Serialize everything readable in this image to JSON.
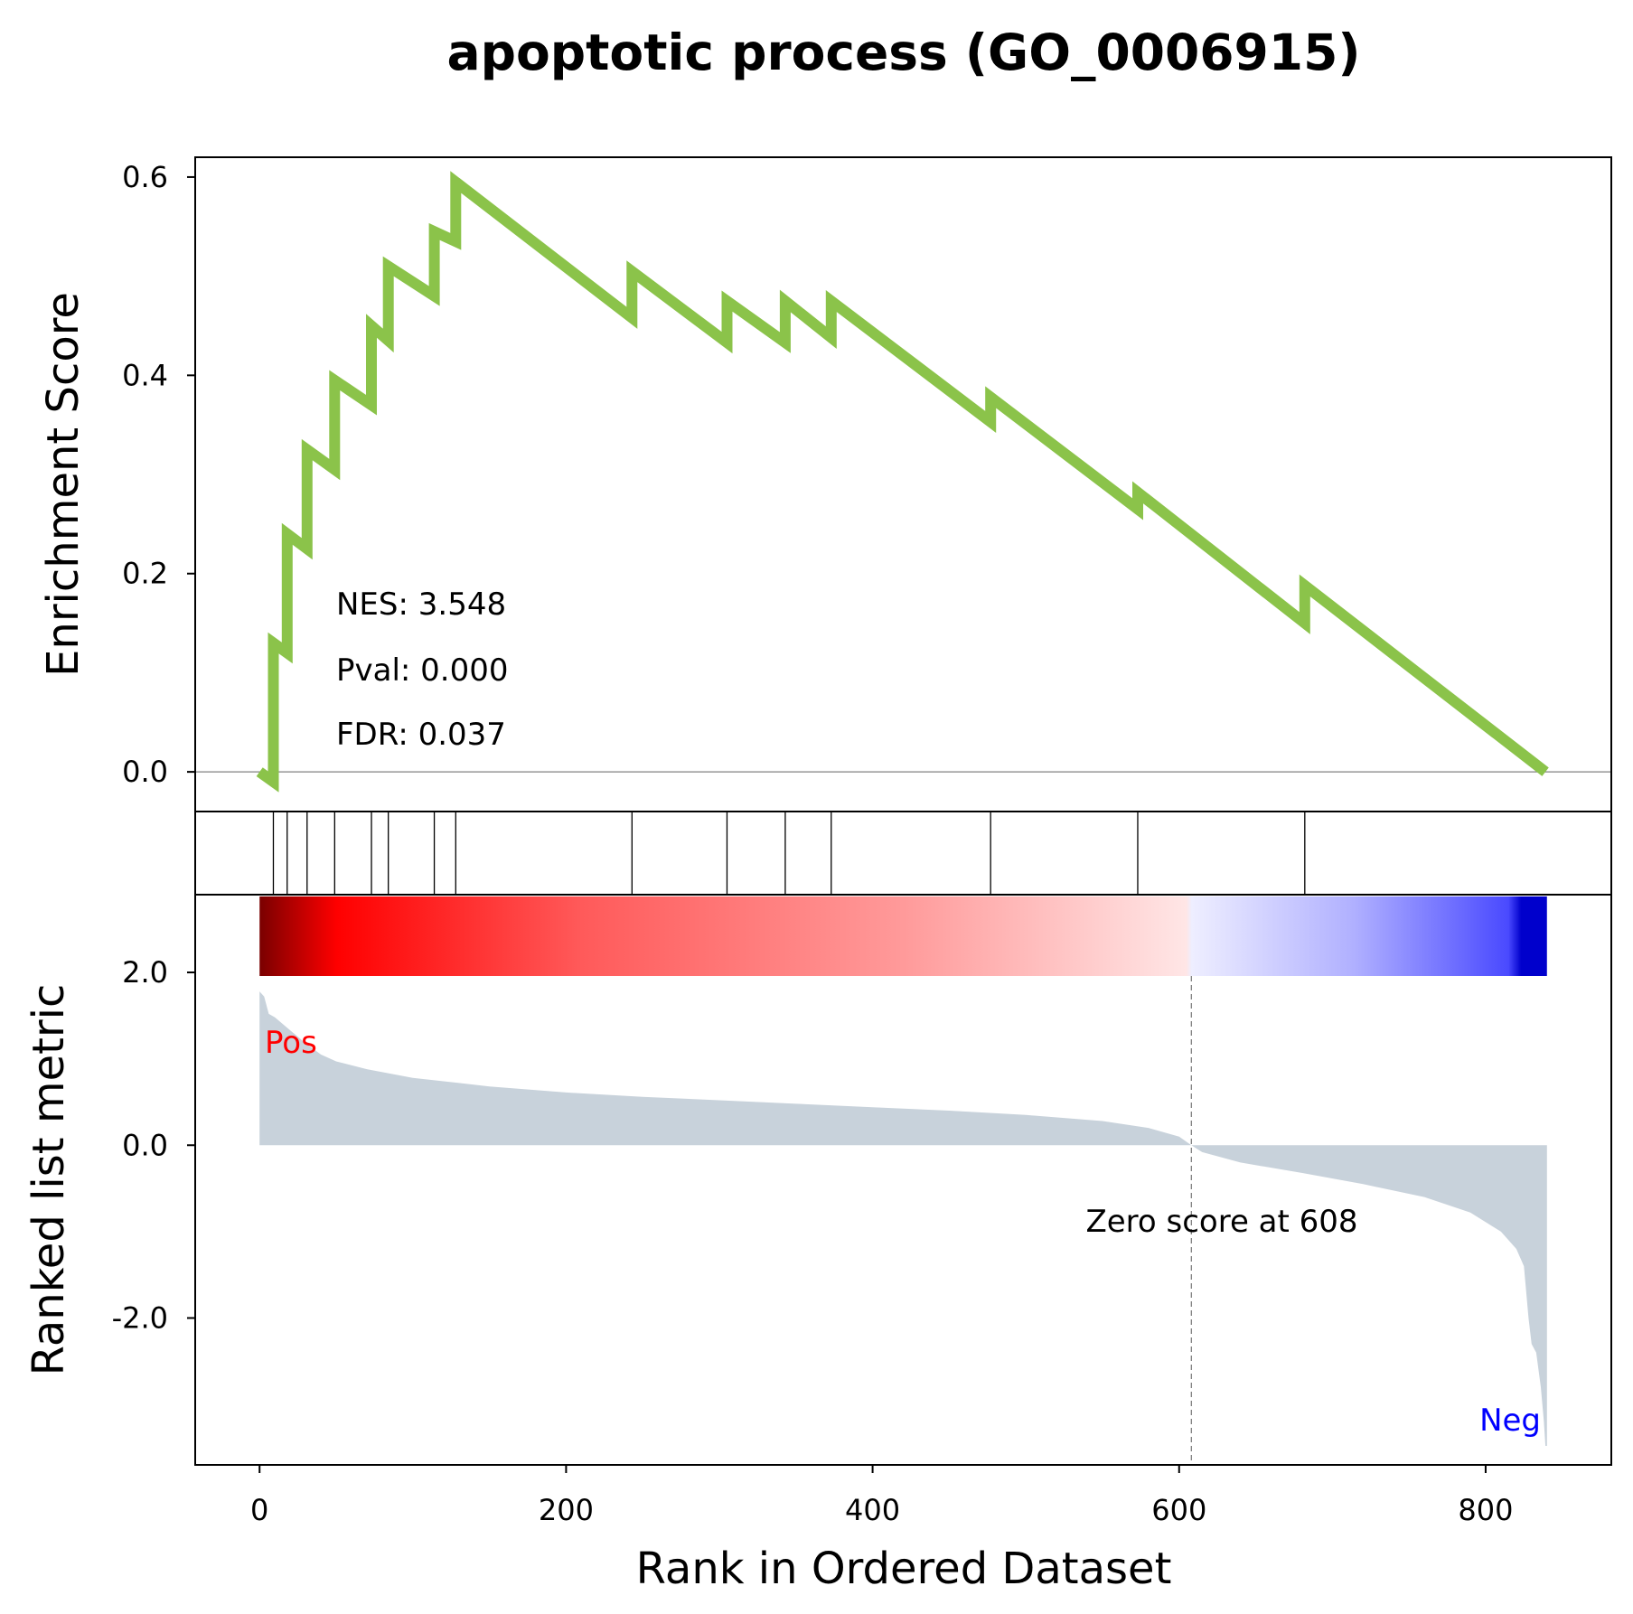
{
  "chart_data": {
    "type": "line",
    "title": "apoptotic process (GO_0006915)",
    "xlabel": "Rank in Ordered Dataset",
    "xlim": [
      -42,
      882
    ],
    "x_ticks": [
      "0",
      "200",
      "400",
      "600",
      "800"
    ],
    "x_tick_values": [
      0,
      200,
      400,
      600,
      800
    ],
    "enrichment": {
      "ylabel": "Enrichment Score",
      "ylim": [
        -0.04,
        0.62
      ],
      "y_ticks": [
        "0.0",
        "0.2",
        "0.4",
        "0.6"
      ],
      "y_tick_values": [
        0.0,
        0.2,
        0.4,
        0.6
      ],
      "line_color": "#8bc34a",
      "points": [
        [
          0,
          0.0
        ],
        [
          9,
          -0.01
        ],
        [
          9,
          0.13
        ],
        [
          18,
          0.12
        ],
        [
          18,
          0.24
        ],
        [
          31,
          0.225
        ],
        [
          31,
          0.325
        ],
        [
          49,
          0.305
        ],
        [
          49,
          0.395
        ],
        [
          73,
          0.37
        ],
        [
          73,
          0.45
        ],
        [
          84,
          0.435
        ],
        [
          84,
          0.51
        ],
        [
          114,
          0.48
        ],
        [
          114,
          0.545
        ],
        [
          128,
          0.535
        ],
        [
          128,
          0.595
        ],
        [
          243,
          0.458
        ],
        [
          243,
          0.505
        ],
        [
          305,
          0.433
        ],
        [
          305,
          0.475
        ],
        [
          343,
          0.433
        ],
        [
          343,
          0.475
        ],
        [
          373,
          0.438
        ],
        [
          373,
          0.475
        ],
        [
          477,
          0.353
        ],
        [
          477,
          0.378
        ],
        [
          573,
          0.265
        ],
        [
          573,
          0.282
        ],
        [
          682,
          0.15
        ],
        [
          682,
          0.188
        ],
        [
          839,
          0.0
        ]
      ]
    },
    "hits": [
      9,
      18,
      31,
      49,
      73,
      84,
      114,
      128,
      243,
      305,
      343,
      373,
      477,
      573,
      682
    ],
    "stats": {
      "nes": "NES: 3.548",
      "pval": "Pval: 0.000",
      "fdr": "FDR: 0.037"
    },
    "ranked": {
      "ylabel": "Ranked list metric",
      "ylim": [
        -3.7,
        2.9
      ],
      "y_ticks": [
        "2.0",
        "0.0",
        "-2.0"
      ],
      "y_tick_values": [
        2.0,
        0.0,
        -2.0
      ],
      "fill_color": "#c8d2db",
      "curve": [
        [
          0,
          1.78
        ],
        [
          3,
          1.72
        ],
        [
          6,
          1.52
        ],
        [
          10,
          1.48
        ],
        [
          20,
          1.33
        ],
        [
          30,
          1.18
        ],
        [
          40,
          1.05
        ],
        [
          50,
          0.97
        ],
        [
          70,
          0.88
        ],
        [
          100,
          0.78
        ],
        [
          150,
          0.68
        ],
        [
          200,
          0.61
        ],
        [
          250,
          0.56
        ],
        [
          300,
          0.52
        ],
        [
          350,
          0.48
        ],
        [
          400,
          0.44
        ],
        [
          450,
          0.4
        ],
        [
          500,
          0.35
        ],
        [
          550,
          0.28
        ],
        [
          580,
          0.2
        ],
        [
          600,
          0.1
        ],
        [
          608,
          0.0
        ],
        [
          615,
          -0.08
        ],
        [
          640,
          -0.2
        ],
        [
          680,
          -0.32
        ],
        [
          720,
          -0.45
        ],
        [
          760,
          -0.6
        ],
        [
          790,
          -0.78
        ],
        [
          810,
          -1.0
        ],
        [
          820,
          -1.2
        ],
        [
          825,
          -1.4
        ],
        [
          828,
          -2.0
        ],
        [
          830,
          -2.3
        ],
        [
          833,
          -2.4
        ],
        [
          836,
          -2.8
        ],
        [
          838,
          -3.2
        ],
        [
          839,
          -3.48
        ],
        [
          840,
          -3.48
        ],
        [
          840,
          0.0
        ]
      ],
      "colorbar_stops": [
        [
          0.0,
          "#7a0000"
        ],
        [
          0.06,
          "#ff0000"
        ],
        [
          0.25,
          "#ff5a5a"
        ],
        [
          0.5,
          "#ff9a9a"
        ],
        [
          0.72,
          "#ffe6e6"
        ],
        [
          0.724,
          "#eeeeff"
        ],
        [
          0.85,
          "#b0b0ff"
        ],
        [
          0.97,
          "#4a4aff"
        ],
        [
          0.98,
          "#0000cc"
        ],
        [
          1.0,
          "#0000cc"
        ]
      ],
      "zero_score_rank": 608,
      "zero_label": "Zero score at 608",
      "pos_label": "Pos",
      "neg_label": "Neg",
      "pos_color": "#ff0000",
      "neg_color": "#0000ff"
    }
  }
}
